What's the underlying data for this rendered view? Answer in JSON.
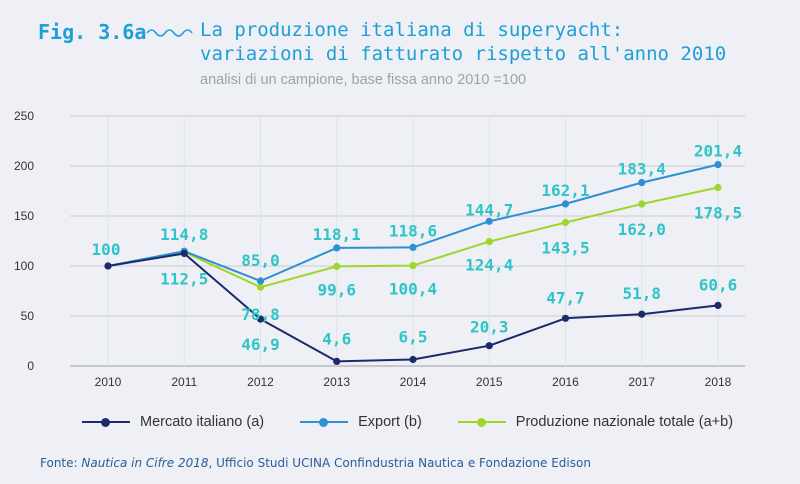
{
  "header": {
    "fig_label": "Fig. 3.6a",
    "title": "La produzione italiana di superyacht:\nvariazioni di fatturato rispetto all'anno 2010",
    "subtitle": "analisi di un campione, base fissa anno 2010 =100"
  },
  "colors": {
    "accent": "#1e9fd6",
    "data_label": "#2ec4c8",
    "mercato": "#1c2a6b",
    "export": "#2d8fd4",
    "produzione": "#9ed62a",
    "grid": "#c9ccd3",
    "background": "#eef0f5"
  },
  "chart_data": {
    "type": "line",
    "title": "La produzione italiana di superyacht: variazioni di fatturato rispetto all'anno 2010",
    "subtitle": "analisi di un campione, base fissa anno 2010 =100",
    "x": [
      "2010",
      "2011",
      "2012",
      "2013",
      "2014",
      "2015",
      "2016",
      "2017",
      "2018"
    ],
    "ylim": [
      0,
      250
    ],
    "yticks": [
      0,
      50,
      100,
      150,
      200,
      250
    ],
    "grid": true,
    "legend_position": "bottom",
    "series": [
      {
        "name": "Mercato italiano (a)",
        "color": "#1c2a6b",
        "values": [
          100,
          112.5,
          46.9,
          4.6,
          6.5,
          20.3,
          47.7,
          51.8,
          60.6
        ],
        "labels": [
          "",
          "112,5",
          "46,9",
          "4,6",
          "6,5",
          "20,3",
          "47,7",
          "51,8",
          "60,6"
        ]
      },
      {
        "name": "Export (b)",
        "color": "#2d8fd4",
        "values": [
          100,
          114.8,
          85.0,
          118.1,
          118.6,
          144.7,
          162.1,
          183.4,
          201.4
        ],
        "labels": [
          "100",
          "114,8",
          "85,0",
          "118,1",
          "118,6",
          "144,7",
          "162,1",
          "183,4",
          "201,4"
        ]
      },
      {
        "name": "Produzione nazionale totale (a+b)",
        "color": "#9ed62a",
        "values": [
          100,
          114.0,
          78.8,
          99.6,
          100.4,
          124.4,
          143.5,
          162.0,
          178.5
        ],
        "labels": [
          "",
          "",
          "78,8",
          "99,6",
          "100,4",
          "124,4",
          "143,5",
          "162,0",
          "178,5"
        ]
      }
    ]
  },
  "source": {
    "prefix": "Fonte: ",
    "publication": "Nautica in Cifre 2018",
    "rest": ", Ufficio Studi UCINA Confindustria Nautica e Fondazione Edison"
  }
}
